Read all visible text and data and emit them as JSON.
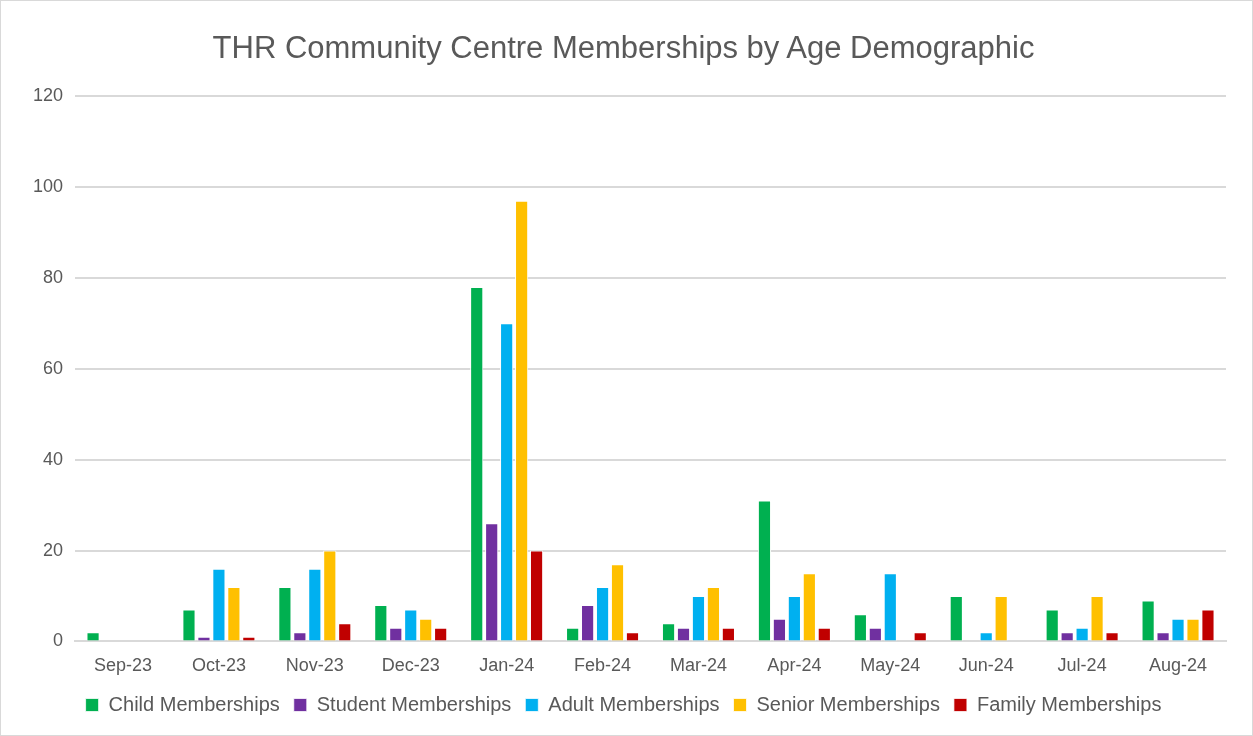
{
  "chart_data": {
    "type": "bar",
    "title": "THR Community Centre Memberships by Age Demographic",
    "categories": [
      "Sep-23",
      "Oct-23",
      "Nov-23",
      "Dec-23",
      "Jan-24",
      "Feb-24",
      "Mar-24",
      "Apr-24",
      "May-24",
      "Jun-24",
      "Jul-24",
      "Aug-24"
    ],
    "series": [
      {
        "name": "Child Memberships",
        "color": "#00b050",
        "values": [
          2,
          7,
          12,
          8,
          78,
          3,
          4,
          31,
          6,
          10,
          7,
          9
        ]
      },
      {
        "name": "Student Memberships",
        "color": "#7030a0",
        "values": [
          0,
          1,
          2,
          3,
          26,
          8,
          3,
          5,
          3,
          0,
          2,
          2
        ]
      },
      {
        "name": "Adult Memberships",
        "color": "#00b0f0",
        "values": [
          0,
          16,
          16,
          7,
          70,
          12,
          10,
          10,
          15,
          2,
          3,
          5
        ]
      },
      {
        "name": "Senior Memberships",
        "color": "#ffc000",
        "values": [
          0,
          12,
          20,
          5,
          97,
          17,
          12,
          15,
          0,
          10,
          10,
          5
        ]
      },
      {
        "name": "Family Memberships",
        "color": "#c00000",
        "values": [
          0,
          1,
          4,
          3,
          20,
          2,
          3,
          3,
          2,
          0,
          2,
          7
        ]
      }
    ],
    "ylim": [
      0,
      120
    ],
    "yticks": [
      0,
      20,
      40,
      60,
      80,
      100,
      120
    ],
    "grid": "y",
    "legend": "bottom"
  }
}
